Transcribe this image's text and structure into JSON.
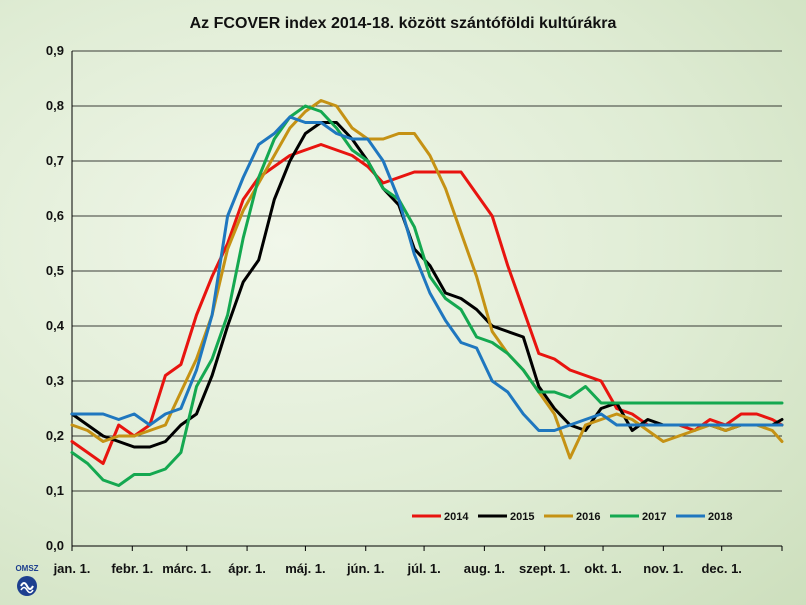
{
  "chart_data": {
    "type": "line",
    "title": "Az FCOVER index 2014-18. között szántóföldi kultúrákra",
    "xlabel": "",
    "ylabel": "",
    "ylim": [
      0,
      0.9
    ],
    "yticks": [
      "0,0",
      "0,1",
      "0,2",
      "0,3",
      "0,4",
      "0,5",
      "0,6",
      "0,7",
      "0,8",
      "0,9"
    ],
    "grid": true,
    "legend_position": "bottom-right, inside plot",
    "x_range_days": [
      1,
      366
    ],
    "x_tick_days": [
      1,
      32,
      60,
      91,
      121,
      152,
      182,
      213,
      244,
      274,
      305,
      335
    ],
    "categories": [
      "jan. 1.",
      "febr. 1.",
      "márc. 1.",
      "ápr. 1.",
      "máj. 1.",
      "jún. 1.",
      "júl. 1.",
      "aug. 1.",
      "szept. 1.",
      "okt. 1.",
      "nov. 1.",
      "dec. 1."
    ],
    "x": [
      1,
      9,
      17,
      25,
      33,
      41,
      49,
      57,
      65,
      73,
      81,
      89,
      97,
      105,
      113,
      121,
      129,
      137,
      145,
      153,
      161,
      169,
      177,
      185,
      193,
      201,
      209,
      217,
      225,
      233,
      241,
      249,
      257,
      265,
      273,
      281,
      289,
      297,
      305,
      313,
      321,
      329,
      337,
      345,
      353,
      361,
      366
    ],
    "series": [
      {
        "name": "2014",
        "color": "#e8140f",
        "values": [
          0.19,
          0.17,
          0.15,
          0.22,
          0.2,
          0.22,
          0.31,
          0.33,
          0.42,
          0.49,
          0.55,
          0.63,
          0.67,
          0.69,
          0.71,
          0.72,
          0.73,
          0.72,
          0.71,
          0.69,
          0.66,
          0.67,
          0.68,
          0.68,
          0.68,
          0.68,
          0.64,
          0.6,
          0.51,
          0.43,
          0.35,
          0.34,
          0.32,
          0.31,
          0.3,
          0.25,
          0.24,
          0.22,
          0.22,
          0.22,
          0.21,
          0.23,
          0.22,
          0.24,
          0.24,
          0.23,
          0.22
        ]
      },
      {
        "name": "2015",
        "color": "#000000",
        "values": [
          0.24,
          0.22,
          0.2,
          0.19,
          0.18,
          0.18,
          0.19,
          0.22,
          0.24,
          0.31,
          0.4,
          0.48,
          0.52,
          0.63,
          0.7,
          0.75,
          0.77,
          0.77,
          0.74,
          0.7,
          0.65,
          0.62,
          0.54,
          0.51,
          0.46,
          0.45,
          0.43,
          0.4,
          0.39,
          0.38,
          0.29,
          0.25,
          0.22,
          0.21,
          0.25,
          0.26,
          0.21,
          0.23,
          0.22,
          0.22,
          0.22,
          0.22,
          0.21,
          0.22,
          0.22,
          0.22,
          0.23
        ]
      },
      {
        "name": "2016",
        "color": "#c59214",
        "values": [
          0.22,
          0.21,
          0.19,
          0.2,
          0.2,
          0.21,
          0.22,
          0.28,
          0.34,
          0.42,
          0.54,
          0.61,
          0.66,
          0.71,
          0.76,
          0.79,
          0.81,
          0.8,
          0.76,
          0.74,
          0.74,
          0.75,
          0.75,
          0.71,
          0.65,
          0.57,
          0.49,
          0.39,
          0.35,
          0.32,
          0.28,
          0.24,
          0.16,
          0.22,
          0.23,
          0.24,
          0.23,
          0.21,
          0.19,
          0.2,
          0.21,
          0.22,
          0.21,
          0.22,
          0.22,
          0.21,
          0.19
        ]
      },
      {
        "name": "2017",
        "color": "#14a850",
        "values": [
          0.17,
          0.15,
          0.12,
          0.11,
          0.13,
          0.13,
          0.14,
          0.17,
          0.29,
          0.34,
          0.42,
          0.56,
          0.67,
          0.74,
          0.78,
          0.8,
          0.79,
          0.76,
          0.72,
          0.7,
          0.65,
          0.63,
          0.58,
          0.49,
          0.45,
          0.43,
          0.38,
          0.37,
          0.35,
          0.32,
          0.28,
          0.28,
          0.27,
          0.29,
          0.26,
          0.26,
          0.26,
          0.26,
          0.26,
          0.26,
          0.26,
          0.26,
          0.26,
          0.26,
          0.26,
          0.26,
          0.26
        ]
      },
      {
        "name": "2018",
        "color": "#1f77bf",
        "values": [
          0.24,
          0.24,
          0.24,
          0.23,
          0.24,
          0.22,
          0.24,
          0.25,
          0.32,
          0.42,
          0.6,
          0.67,
          0.73,
          0.75,
          0.78,
          0.77,
          0.77,
          0.75,
          0.74,
          0.74,
          0.7,
          0.63,
          0.53,
          0.46,
          0.41,
          0.37,
          0.36,
          0.3,
          0.28,
          0.24,
          0.21,
          0.21,
          0.22,
          0.23,
          0.24,
          0.22,
          0.22,
          0.22,
          0.22,
          0.22,
          0.22,
          0.22,
          0.22,
          0.22,
          0.22,
          0.22,
          0.22
        ]
      }
    ]
  },
  "logo": {
    "text": "OMSZ"
  }
}
